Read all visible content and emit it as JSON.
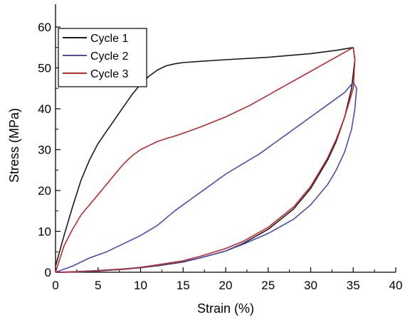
{
  "chart_data": {
    "type": "line",
    "xlabel": "Strain (%)",
    "ylabel": "Stress (MPa)",
    "xlim": [
      0,
      40
    ],
    "ylim": [
      0,
      65
    ],
    "xticks": [
      0,
      5,
      10,
      15,
      20,
      25,
      30,
      35,
      40
    ],
    "yticks": [
      0,
      10,
      20,
      30,
      40,
      50,
      60
    ],
    "xtick_labels": [
      "0",
      "5",
      "10",
      "15",
      "20",
      "25",
      "30",
      "35",
      "40"
    ],
    "ytick_labels": [
      "0",
      "10",
      "20",
      "30",
      "40",
      "50",
      "60"
    ],
    "legend_position": "top-left",
    "grid": false,
    "series": [
      {
        "name": "Cycle 1",
        "color": "#1a1a1a",
        "loading": [
          [
            0,
            1.5
          ],
          [
            1,
            9
          ],
          [
            2,
            16
          ],
          [
            3,
            22.5
          ],
          [
            4,
            27.5
          ],
          [
            5,
            31.5
          ],
          [
            6,
            34.5
          ],
          [
            7,
            37.5
          ],
          [
            8,
            40.5
          ],
          [
            9,
            43.5
          ],
          [
            10,
            46
          ],
          [
            11,
            48
          ],
          [
            12,
            49.5
          ],
          [
            13,
            50.5
          ],
          [
            14,
            51
          ],
          [
            15,
            51.3
          ],
          [
            17,
            51.6
          ],
          [
            20,
            52
          ],
          [
            25,
            52.6
          ],
          [
            30,
            53.5
          ],
          [
            33,
            54.3
          ],
          [
            35,
            55
          ]
        ],
        "unloading": [
          [
            35,
            55
          ],
          [
            35.2,
            52
          ],
          [
            34.8,
            45
          ],
          [
            34,
            38
          ],
          [
            33,
            32
          ],
          [
            32,
            27.5
          ],
          [
            30,
            20.5
          ],
          [
            28,
            15.5
          ],
          [
            25,
            10.5
          ],
          [
            22,
            7
          ],
          [
            20,
            5.2
          ],
          [
            17,
            3.5
          ],
          [
            15,
            2.5
          ],
          [
            12,
            1.6
          ],
          [
            10,
            1.1
          ],
          [
            8,
            0.8
          ],
          [
            5,
            0.4
          ],
          [
            3,
            0.2
          ],
          [
            1,
            0
          ],
          [
            0,
            0
          ]
        ]
      },
      {
        "name": "Cycle 2",
        "color": "#4a4ab8",
        "loading": [
          [
            0,
            0
          ],
          [
            2,
            1.5
          ],
          [
            4,
            3.5
          ],
          [
            6,
            5
          ],
          [
            8,
            7
          ],
          [
            10,
            9
          ],
          [
            12,
            11.5
          ],
          [
            14,
            15
          ],
          [
            16,
            18
          ],
          [
            18,
            21
          ],
          [
            20,
            24
          ],
          [
            22,
            26.5
          ],
          [
            24,
            29
          ],
          [
            26,
            32
          ],
          [
            28,
            35
          ],
          [
            30,
            38
          ],
          [
            32,
            41
          ],
          [
            34,
            44
          ],
          [
            35,
            46.5
          ]
        ],
        "unloading": [
          [
            35,
            46.5
          ],
          [
            35.4,
            45
          ],
          [
            35.2,
            40
          ],
          [
            34.8,
            35
          ],
          [
            34,
            29.5
          ],
          [
            33,
            25
          ],
          [
            32,
            21.5
          ],
          [
            30,
            16.5
          ],
          [
            28,
            13
          ],
          [
            25,
            9.5
          ],
          [
            22,
            6.8
          ],
          [
            20,
            5.2
          ],
          [
            17,
            3.5
          ],
          [
            15,
            2.6
          ],
          [
            12,
            1.7
          ],
          [
            10,
            1.1
          ],
          [
            8,
            0.7
          ],
          [
            5,
            0.3
          ],
          [
            3,
            0.1
          ],
          [
            0,
            0
          ]
        ]
      },
      {
        "name": "Cycle 3",
        "color": "#c0282b",
        "loading": [
          [
            0,
            0
          ],
          [
            1,
            6.5
          ],
          [
            2,
            10.5
          ],
          [
            3,
            14
          ],
          [
            4,
            16.5
          ],
          [
            5,
            19
          ],
          [
            6,
            21.5
          ],
          [
            7,
            24
          ],
          [
            8,
            26.5
          ],
          [
            9,
            28.5
          ],
          [
            10,
            30
          ],
          [
            11,
            31
          ],
          [
            12,
            32
          ],
          [
            13,
            32.7
          ],
          [
            14,
            33.3
          ],
          [
            15,
            34
          ],
          [
            17,
            35.5
          ],
          [
            20,
            38
          ],
          [
            23,
            41
          ],
          [
            26,
            44.5
          ],
          [
            29,
            48
          ],
          [
            32,
            51.5
          ],
          [
            35,
            55
          ]
        ],
        "unloading": [
          [
            35,
            55
          ],
          [
            35.2,
            52
          ],
          [
            35,
            45
          ],
          [
            34,
            38
          ],
          [
            33,
            32.5
          ],
          [
            32,
            28
          ],
          [
            30,
            21
          ],
          [
            28,
            16
          ],
          [
            25,
            11
          ],
          [
            22,
            7.5
          ],
          [
            20,
            5.8
          ],
          [
            17,
            3.9
          ],
          [
            15,
            2.8
          ],
          [
            12,
            1.8
          ],
          [
            10,
            1.2
          ],
          [
            8,
            0.8
          ],
          [
            5,
            0.4
          ],
          [
            3,
            0.2
          ],
          [
            0,
            0
          ]
        ]
      }
    ]
  }
}
